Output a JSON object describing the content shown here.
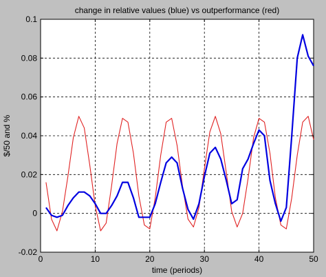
{
  "chart_data": {
    "type": "line",
    "title": "change in relative values (blue) vs outperformance (red)",
    "xlabel": "time (periods)",
    "ylabel": "$/50 and %",
    "xlim": [
      0,
      50
    ],
    "ylim": [
      -0.02,
      0.1
    ],
    "x_ticks": [
      0,
      10,
      20,
      30,
      40,
      50
    ],
    "y_ticks": [
      -0.02,
      0,
      0.02,
      0.04,
      0.06,
      0.08,
      0.1
    ],
    "x_tick_labels": [
      "0",
      "10",
      "20",
      "30",
      "40",
      "50"
    ],
    "y_tick_labels": [
      "-0.02",
      "0",
      "0.02",
      "0.04",
      "0.06",
      "0.08",
      "0.1"
    ],
    "grid": true,
    "grid_style": "dashed",
    "series": [
      {
        "color": "#e02020",
        "x": [
          1,
          2,
          3,
          4,
          5,
          6,
          7,
          8,
          9,
          10,
          11,
          12,
          13,
          14,
          15,
          16,
          17,
          18,
          19,
          20,
          21,
          22,
          23,
          24,
          25,
          26,
          27,
          28,
          29,
          30,
          31,
          32,
          33,
          34,
          35,
          36,
          37,
          38,
          39,
          40,
          41,
          42,
          43,
          44,
          45,
          46,
          47,
          48,
          49,
          50
        ],
        "values": [
          0.016,
          -0.003,
          -0.009,
          0.001,
          0.019,
          0.039,
          0.05,
          0.044,
          0.025,
          0.004,
          -0.009,
          -0.005,
          0.014,
          0.036,
          0.049,
          0.047,
          0.031,
          0.009,
          -0.006,
          -0.008,
          0.008,
          0.03,
          0.047,
          0.049,
          0.035,
          0.014,
          -0.003,
          -0.007,
          0.003,
          0.023,
          0.042,
          0.05,
          0.041,
          0.021,
          0.001,
          -0.007,
          0.0,
          0.018,
          0.039,
          0.049,
          0.047,
          0.031,
          0.008,
          -0.006,
          -0.008,
          0.008,
          0.03,
          0.047,
          0.05,
          0.038
        ]
      },
      {
        "color": "#0000e0",
        "x": [
          1,
          2,
          3,
          4,
          5,
          6,
          7,
          8,
          9,
          10,
          11,
          12,
          13,
          14,
          15,
          16,
          17,
          18,
          19,
          20,
          21,
          22,
          23,
          24,
          25,
          26,
          27,
          28,
          29,
          30,
          31,
          32,
          33,
          34,
          35,
          36,
          37,
          38,
          39,
          40,
          41,
          42,
          43,
          44,
          45,
          46,
          47,
          48,
          49,
          50
        ],
        "values": [
          0.003,
          -0.001,
          -0.002,
          -0.001,
          0.004,
          0.008,
          0.011,
          0.011,
          0.009,
          0.005,
          0.0,
          0.0,
          0.004,
          0.009,
          0.016,
          0.016,
          0.008,
          -0.002,
          -0.002,
          -0.002,
          0.005,
          0.016,
          0.026,
          0.029,
          0.026,
          0.013,
          0.002,
          -0.003,
          0.005,
          0.019,
          0.031,
          0.034,
          0.028,
          0.017,
          0.005,
          0.007,
          0.023,
          0.028,
          0.036,
          0.043,
          0.04,
          0.017,
          0.005,
          -0.004,
          0.003,
          0.04,
          0.08,
          0.092,
          0.081,
          0.076
        ]
      }
    ]
  }
}
